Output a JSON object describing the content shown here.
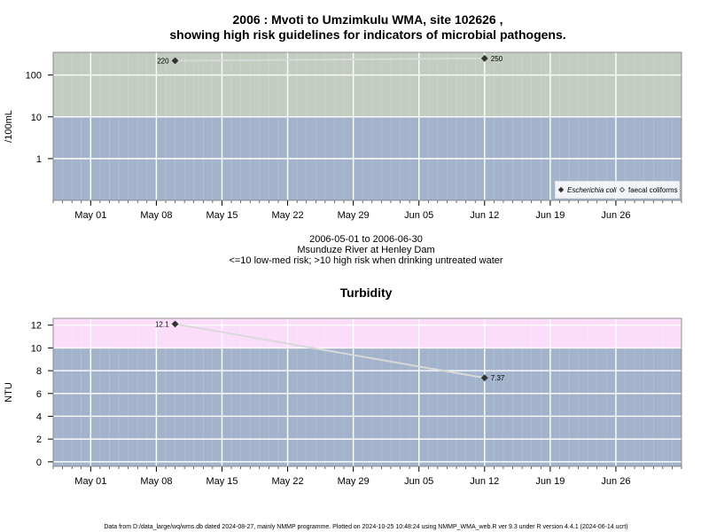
{
  "title": {
    "line1": "2006 : Mvoti to Umzimkulu WMA, site 102626 ,",
    "line2": "showing high risk guidelines for indicators of microbial pathogens."
  },
  "subtitle": {
    "line1": "2006-05-01 to 2006-06-30",
    "line2": "Msunduze River at Henley Dam",
    "line3": "<=10 low-med risk; >10 high risk when drinking untreated water"
  },
  "footer": "Data from D:/data_large/wq/wms.db dated 2024-08-27, mainly NMMP programme. Plotted on 2024-10-25 10:48:24 using NMMP_WMA_web.R ver 9.3 under R version 4.4.1 (2024-06-14 ucrt)",
  "colors": {
    "panel_low": "#a3b3cc",
    "panel_high_microbial": "#c2ccc0",
    "panel_high_turbidity": "#fbddfb",
    "grid": "#ffffff",
    "series_line": "#d9d9d9",
    "point": "#333333"
  },
  "chart_data": [
    {
      "type": "line",
      "title": "",
      "xlabel": "",
      "ylabel": "/100mL",
      "y_scale": "log",
      "ylim": [
        0.1,
        350
      ],
      "y_ticks": [
        1,
        10,
        100
      ],
      "y_tick_labels": [
        "1",
        "10",
        "100"
      ],
      "x_range": [
        "2006-04-27",
        "2006-07-03"
      ],
      "x_ticks": [
        "2006-05-01",
        "2006-05-08",
        "2006-05-15",
        "2006-05-22",
        "2006-05-29",
        "2006-06-05",
        "2006-06-12",
        "2006-06-19",
        "2006-06-26"
      ],
      "x_tick_labels": [
        "May 01",
        "May 08",
        "May 15",
        "May 22",
        "May 29",
        "Jun 05",
        "Jun 12",
        "Jun 19",
        "Jun 26"
      ],
      "grid": true,
      "guideline": {
        "value": 10,
        "low_label": "<=10 low-med risk",
        "high_label": ">10 high risk"
      },
      "legend_position": "bottom-right",
      "series": [
        {
          "name": "Escherichia coli",
          "marker": "filled-diamond",
          "points": [
            {
              "x": "2006-05-10",
              "y": 220,
              "label": "220"
            },
            {
              "x": "2006-06-12",
              "y": 250,
              "label": "250"
            }
          ]
        },
        {
          "name": "faecal coliforms",
          "marker": "open-diamond",
          "points": []
        }
      ]
    },
    {
      "type": "line",
      "title": "Turbidity",
      "xlabel": "",
      "ylabel": "NTU",
      "y_scale": "linear",
      "ylim": [
        -0.4,
        12.6
      ],
      "y_ticks": [
        0,
        2,
        4,
        6,
        8,
        10,
        12
      ],
      "y_tick_labels": [
        "0",
        "2",
        "4",
        "6",
        "8",
        "10",
        "12"
      ],
      "x_range": [
        "2006-04-27",
        "2006-07-03"
      ],
      "x_ticks": [
        "2006-05-01",
        "2006-05-08",
        "2006-05-15",
        "2006-05-22",
        "2006-05-29",
        "2006-06-05",
        "2006-06-12",
        "2006-06-19",
        "2006-06-26"
      ],
      "x_tick_labels": [
        "May 01",
        "May 08",
        "May 15",
        "May 22",
        "May 29",
        "Jun 05",
        "Jun 12",
        "Jun 19",
        "Jun 26"
      ],
      "grid": true,
      "guideline": {
        "value": 10
      },
      "series": [
        {
          "name": "",
          "marker": "filled-diamond",
          "points": [
            {
              "x": "2006-05-10",
              "y": 12.1,
              "label": "12.1"
            },
            {
              "x": "2006-06-12",
              "y": 7.37,
              "label": "7.37"
            }
          ]
        }
      ]
    }
  ]
}
